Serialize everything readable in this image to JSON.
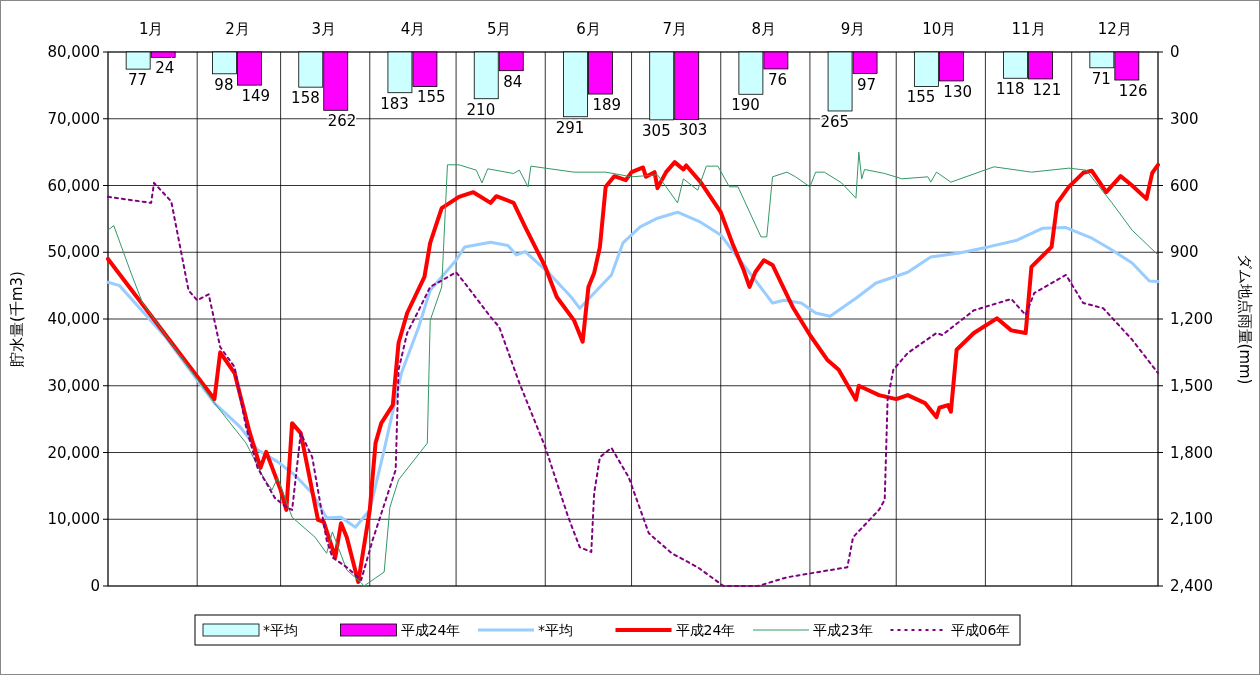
{
  "chart_data": {
    "type": "line",
    "xlabel": null,
    "ylabel": "貯水量(千m3)",
    "y2label": "ダム地点雨量(mm)",
    "xlim": [
      "--01-01",
      "--12-31"
    ],
    "xticks": [
      {
        "value": "--01-01",
        "label": null
      },
      {
        "value": "--01-16",
        "label": "1月"
      },
      {
        "value": "--02-01",
        "label": null
      },
      {
        "value": "--02-15",
        "label": "2月"
      },
      {
        "value": "--03-01",
        "label": null
      },
      {
        "value": "--03-16",
        "label": "3月"
      },
      {
        "value": "--04-01",
        "label": null
      },
      {
        "value": "--04-16",
        "label": "4月"
      },
      {
        "value": "--05-01",
        "label": null
      },
      {
        "value": "--05-16",
        "label": "5月"
      },
      {
        "value": "--06-01",
        "label": null
      },
      {
        "value": "--06-16",
        "label": "6月"
      },
      {
        "value": "--07-01",
        "label": null
      },
      {
        "value": "--07-16",
        "label": "7月"
      },
      {
        "value": "--08-01",
        "label": null
      },
      {
        "value": "--08-16",
        "label": "8月"
      },
      {
        "value": "--09-01",
        "label": null
      },
      {
        "value": "--09-16",
        "label": "9月"
      },
      {
        "value": "--10-01",
        "label": null
      },
      {
        "value": "--10-16",
        "label": "10月"
      },
      {
        "value": "--11-01",
        "label": null
      },
      {
        "value": "--11-16",
        "label": "11月"
      },
      {
        "value": "--12-01",
        "label": null
      },
      {
        "value": "--12-16",
        "label": "12月"
      },
      {
        "value": "--12-31",
        "label": null
      }
    ],
    "ylim": [
      0,
      80000
    ],
    "yticks": [
      0,
      {
        "value": 10000,
        "label": "10,000"
      },
      {
        "value": 20000,
        "label": "20,000"
      },
      {
        "value": 30000,
        "label": "30,000"
      },
      {
        "value": 40000,
        "label": "40,000"
      },
      {
        "value": 50000,
        "label": "50,000"
      },
      {
        "value": 60000,
        "label": "60,000"
      },
      {
        "value": 70000,
        "label": "70,000"
      },
      {
        "value": 80000,
        "label": "80,000"
      }
    ],
    "y2lim": [
      2400,
      0
    ],
    "y2ticks": [
      0,
      300,
      600,
      900,
      {
        "value": 1200,
        "label": "1,200"
      },
      {
        "value": 1500,
        "label": "1,500"
      },
      {
        "value": 1800,
        "label": "1,800"
      },
      {
        "value": 2100,
        "label": "2,100"
      },
      {
        "value": 2400,
        "label": "2,400"
      }
    ],
    "grid": true,
    "legend": "bottom",
    "series": [
      {
        "name": "*平均",
        "type": "bar",
        "axis": "y2",
        "color": "#ccffff",
        "x": [
          "--01-16",
          "--02-15",
          "--03-16",
          "--04-16",
          "--05-16",
          "--06-16",
          "--07-16",
          "--08-16",
          "--09-16",
          "--10-16",
          "--11-16",
          "--12-16"
        ],
        "values": [
          77,
          98,
          158,
          183,
          210,
          291,
          305,
          190,
          265,
          155,
          118,
          71
        ],
        "value_labels": [
          "77",
          "98",
          "158",
          "183",
          "210",
          "291",
          "305",
          "190",
          "265",
          "155",
          "118",
          "71"
        ]
      },
      {
        "name": "平成24年",
        "type": "bar",
        "axis": "y2",
        "color": "#ff00ff",
        "x": [
          "--01-16",
          "--02-15",
          "--03-16",
          "--04-16",
          "--05-16",
          "--06-16",
          "--07-16",
          "--08-16",
          "--09-16",
          "--10-16",
          "--11-16",
          "--12-16"
        ],
        "values": [
          24,
          149,
          262,
          155,
          84,
          189,
          303,
          76,
          97,
          130,
          121,
          126
        ],
        "value_labels": [
          "24",
          "149",
          "262",
          "155",
          "84",
          "189",
          "303",
          "76",
          "97",
          "130",
          "121",
          "126"
        ]
      },
      {
        "name": "*平均",
        "color": "#99ccff",
        "line_style": "solid",
        "x": [
          "--01-01",
          "--01-05",
          "--01-21",
          "--02-07",
          "--02-16",
          "--02-22",
          "--02-29",
          "--03-06",
          "--03-12",
          "--03-17",
          "--03-22",
          "--03-27",
          "--04-01",
          "--04-06",
          "--04-12",
          "--04-18",
          "--04-22",
          "--05-01",
          "--05-04",
          "--05-13",
          "--05-19",
          "--05-22",
          "--05-25",
          "--06-02",
          "--06-10",
          "--06-13",
          "--06-20",
          "--06-24",
          "--06-28",
          "--07-04",
          "--07-10",
          "--07-17",
          "--07-25",
          "--08-01",
          "--08-05",
          "--08-13",
          "--08-19",
          "--08-23",
          "--08-29",
          "--09-03",
          "--09-08",
          "--09-17",
          "--09-24",
          "--10-05",
          "--10-13",
          "--10-23",
          "--11-02",
          "--11-12",
          "--11-21",
          "--11-29",
          "--12-08",
          "--12-14",
          "--12-22",
          "--12-28",
          "--12-31"
        ],
        "values": [
          45500,
          45000,
          37300,
          27400,
          23800,
          20400,
          18600,
          16600,
          13900,
          10200,
          10300,
          8800,
          11400,
          20400,
          31900,
          38800,
          44300,
          48800,
          50800,
          51500,
          51000,
          49600,
          50100,
          47000,
          43300,
          41600,
          44800,
          46600,
          51400,
          53800,
          55100,
          56000,
          54500,
          52600,
          50300,
          45800,
          42400,
          42800,
          42400,
          40900,
          40400,
          43100,
          45400,
          47000,
          49300,
          49900,
          50800,
          51800,
          53600,
          53700,
          52100,
          50600,
          48400,
          45700,
          45600
        ]
      },
      {
        "name": "平成24年",
        "color": "#ff0000",
        "line_style": "solid",
        "x": [
          "--01-01",
          "--02-07",
          "--02-09",
          "--02-14",
          "--02-19",
          "--02-23",
          "--02-25",
          "--03-01",
          "--03-03",
          "--03-05",
          "--03-08",
          "--03-14",
          "--03-16",
          "--03-20",
          "--03-22",
          "--03-24",
          "--03-28",
          "--04-01",
          "--04-03",
          "--04-05",
          "--04-09",
          "--04-11",
          "--04-14",
          "--04-20",
          "--04-22",
          "--04-26",
          "--05-02",
          "--05-07",
          "--05-13",
          "--05-15",
          "--05-21",
          "--05-25",
          "--06-01",
          "--06-05",
          "--06-11",
          "--06-14",
          "--06-16",
          "--06-18",
          "--06-20",
          "--06-22",
          "--06-25",
          "--06-29",
          "--07-01",
          "--07-05",
          "--07-06",
          "--07-09",
          "--07-10",
          "--07-13",
          "--07-16",
          "--07-19",
          "--07-20",
          "--07-25",
          "--08-01",
          "--08-05",
          "--08-09",
          "--08-11",
          "--08-13",
          "--08-16",
          "--08-19",
          "--08-26",
          "--09-01",
          "--09-07",
          "--09-11",
          "--09-17",
          "--09-18",
          "--09-25",
          "--10-01",
          "--10-05",
          "--10-11",
          "--10-15",
          "--10-16",
          "--10-19",
          "--10-20",
          "--10-22",
          "--10-28",
          "--11-05",
          "--11-10",
          "--11-15",
          "--11-17",
          "--11-24",
          "--11-26",
          "--11-30",
          "--12-05",
          "--12-08",
          "--12-13",
          "--12-18",
          "--12-22",
          "--12-27",
          "--12-29",
          "--12-31"
        ],
        "values": [
          49000,
          28000,
          35000,
          31900,
          23400,
          17700,
          20100,
          14400,
          11400,
          24400,
          22900,
          9900,
          9600,
          4300,
          9400,
          7300,
          600,
          11400,
          21400,
          24400,
          27100,
          36400,
          40900,
          46300,
          51400,
          56600,
          58300,
          59000,
          57400,
          58400,
          57400,
          53800,
          47800,
          43300,
          39800,
          36600,
          44800,
          46900,
          50800,
          59800,
          61400,
          60800,
          62000,
          62700,
          61300,
          62000,
          59600,
          62000,
          63500,
          62400,
          63000,
          60500,
          56000,
          51400,
          47300,
          44800,
          47000,
          48800,
          48100,
          41800,
          37600,
          33900,
          32400,
          27900,
          30000,
          28600,
          28000,
          28600,
          27400,
          25300,
          26700,
          27100,
          26100,
          35400,
          37900,
          40100,
          38300,
          37900,
          47800,
          50800,
          57400,
          59800,
          61900,
          62200,
          59000,
          61400,
          60000,
          58000,
          61900,
          63100
        ]
      },
      {
        "name": "平成23年",
        "color": "#339966",
        "line_style": "solid",
        "x": [
          "--01-01",
          "--01-03",
          "--01-09",
          "--01-13",
          "--02-07",
          "--02-18",
          "--02-24",
          "--02-27",
          "--02-29",
          "--03-05",
          "--03-13",
          "--03-17",
          "--03-19",
          "--03-24",
          "--03-29",
          "--03-30",
          "--04-06",
          "--04-08",
          "--04-11",
          "--04-21",
          "--04-22",
          "--04-26",
          "--04-28",
          "--05-02",
          "--05-08",
          "--05-10",
          "--05-12",
          "--05-21",
          "--05-23",
          "--05-26",
          "--05-27",
          "--06-11",
          "--06-22",
          "--07-01",
          "--07-10",
          "--07-17",
          "--07-19",
          "--07-24",
          "--07-27",
          "--07-31",
          "--08-04",
          "--08-07",
          "--08-15",
          "--08-17",
          "--08-19",
          "--08-24",
          "--08-27",
          "--09-01",
          "--09-03",
          "--09-06",
          "--09-12",
          "--09-17",
          "--09-18",
          "--09-19",
          "--09-20",
          "--09-27",
          "--10-03",
          "--10-12",
          "--10-13",
          "--10-15",
          "--10-20",
          "--11-04",
          "--11-17",
          "--11-30",
          "--12-06",
          "--12-15",
          "--12-22",
          "--12-31"
        ],
        "values": [
          53300,
          54000,
          46900,
          42400,
          27400,
          21400,
          16300,
          14400,
          16200,
          10300,
          7300,
          4900,
          8100,
          2400,
          500,
          0,
          2100,
          11800,
          15900,
          21400,
          39800,
          44800,
          63100,
          63100,
          62300,
          60400,
          62500,
          61800,
          62300,
          59800,
          62900,
          62000,
          62000,
          61300,
          61600,
          57400,
          61000,
          59300,
          62900,
          62900,
          59800,
          59800,
          52300,
          52300,
          61300,
          62000,
          61300,
          59800,
          62000,
          62000,
          60400,
          58100,
          65000,
          61000,
          62400,
          61800,
          61000,
          61300,
          60500,
          62000,
          60500,
          62800,
          62000,
          62600,
          62300,
          57400,
          53300,
          49600
        ]
      },
      {
        "name": "平成06年",
        "color": "#800080",
        "line_style": "dotted",
        "x": [
          "--01-01",
          "--01-16",
          "--01-17",
          "--01-23",
          "--01-29",
          "--02-01",
          "--02-05",
          "--02-09",
          "--02-14",
          "--02-18",
          "--02-22",
          "--02-28",
          "--03-03",
          "--03-05",
          "--03-08",
          "--03-12",
          "--03-17",
          "--03-19",
          "--03-24",
          "--03-29",
          "--04-02",
          "--04-08",
          "--04-10",
          "--04-11",
          "--04-14",
          "--04-18",
          "--04-22",
          "--05-01",
          "--05-04",
          "--05-13",
          "--05-16",
          "--05-23",
          "--06-01",
          "--06-09",
          "--06-13",
          "--06-17",
          "--06-18",
          "--06-20",
          "--06-24",
          "--06-30",
          "--07-07",
          "--07-15",
          "--07-24",
          "--08-02",
          "--08-14",
          "--08-24",
          "--09-04",
          "--09-14",
          "--09-16",
          "--09-25",
          "--09-27",
          "--09-28",
          "--09-30",
          "--10-05",
          "--10-15",
          "--10-17",
          "--10-28",
          "--11-10",
          "--11-15",
          "--11-18",
          "--11-29",
          "--12-05",
          "--12-12",
          "--12-22",
          "--12-31"
        ],
        "values": [
          58300,
          57400,
          60400,
          57600,
          44300,
          42800,
          43700,
          35800,
          32800,
          23800,
          17700,
          13200,
          11800,
          11400,
          22900,
          19300,
          6900,
          4300,
          2800,
          900,
          6900,
          14800,
          17400,
          32400,
          37900,
          41300,
          44800,
          47000,
          45400,
          40300,
          38800,
          30400,
          20800,
          10300,
          5800,
          5100,
          13900,
          19300,
          20700,
          16300,
          7900,
          4900,
          2800,
          0,
          0,
          1300,
          2100,
          2800,
          7300,
          11400,
          12900,
          27900,
          32400,
          34900,
          37900,
          37600,
          41300,
          43000,
          40600,
          43900,
          46600,
          42400,
          41600,
          36900,
          31900
        ]
      }
    ]
  }
}
